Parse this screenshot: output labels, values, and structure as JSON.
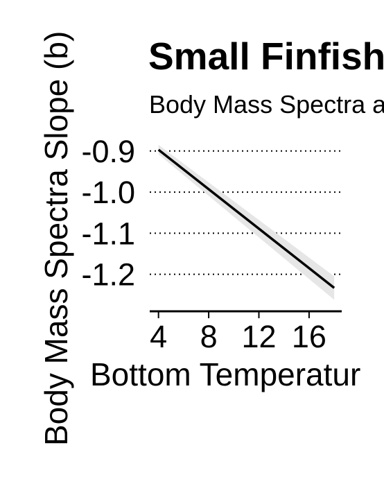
{
  "chart_data": {
    "type": "line",
    "title": "Small Finfish",
    "subtitle": "Body Mass Spectra a",
    "xlabel": "Bottom Temperatur",
    "ylabel": "Body Mass Spectra Slope (b)",
    "x_ticks": [
      "4",
      "8",
      "12",
      "16"
    ],
    "x_tick_values": [
      4,
      8,
      12,
      16
    ],
    "y_ticks": [
      "-0.9",
      "-1.0",
      "-1.1",
      "-1.2"
    ],
    "y_tick_values": [
      -0.9,
      -1.0,
      -1.1,
      -1.2
    ],
    "xlim": [
      3.3,
      18.6
    ],
    "ylim": [
      -1.29,
      -0.87
    ],
    "grid": "horizontal dotted",
    "series": [
      {
        "x": [
          4,
          18
        ],
        "y": [
          -0.897,
          -1.233
        ],
        "ci_lower": [
          -0.908,
          -1.262
        ],
        "ci_upper": [
          -0.885,
          -1.205
        ],
        "color": "#000000",
        "ribbon_color": "#e6e6e6"
      }
    ]
  }
}
